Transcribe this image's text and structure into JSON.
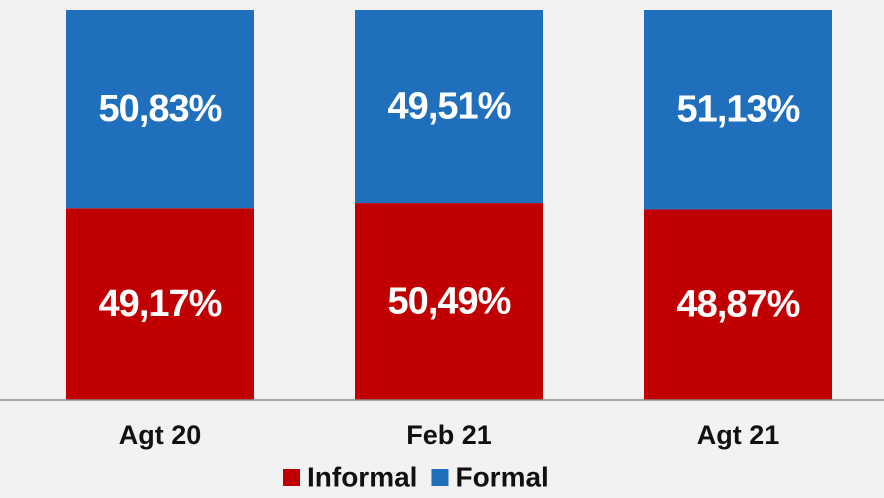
{
  "chart_data": {
    "type": "stacked_bar",
    "categories": [
      "Agt 20",
      "Feb 21",
      "Agt 21"
    ],
    "series": [
      {
        "name": "Informal",
        "color": "#c00000",
        "values": [
          49.17,
          50.49,
          48.87
        ],
        "value_labels": [
          "49,17%",
          "50,49%",
          "48,87%"
        ]
      },
      {
        "name": "Formal",
        "color": "#1f6fbd",
        "values": [
          50.83,
          49.51,
          51.13
        ],
        "value_labels": [
          "50,83%",
          "49,51%",
          "51,13%"
        ]
      }
    ],
    "legend": "bottom"
  }
}
